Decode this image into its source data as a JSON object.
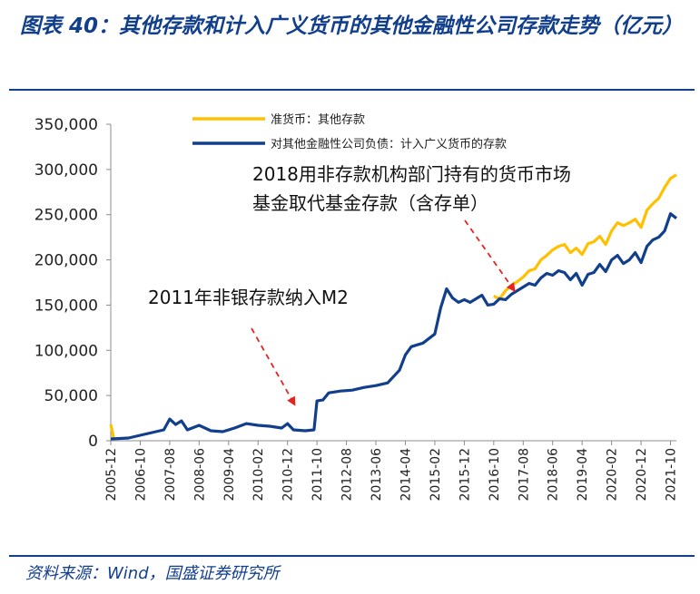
{
  "figure": {
    "title": "图表 40：其他存款和计入广义货币的其他金融性公司存款走势（亿元）",
    "source": "资料来源：Wind，国盛证券研究所"
  },
  "colors": {
    "series1": "#ffc000",
    "series2": "#123f8c",
    "annotation_arrow": "#e6231f",
    "brand": "#123f8c"
  },
  "chart_data": {
    "type": "line",
    "title": "",
    "xlabel": "",
    "ylabel": "",
    "ylim": [
      0,
      350000
    ],
    "y_ticks": [
      0,
      50000,
      100000,
      150000,
      200000,
      250000,
      300000,
      350000
    ],
    "y_tick_labels": [
      "0",
      "50,000",
      "100,000",
      "150,000",
      "200,000",
      "250,000",
      "300,000",
      "350,000"
    ],
    "x_tick_labels": [
      "2005-12",
      "2006-10",
      "2007-08",
      "2008-06",
      "2009-04",
      "2010-02",
      "2010-12",
      "2011-10",
      "2012-08",
      "2013-06",
      "2014-04",
      "2015-02",
      "2015-12",
      "2016-10",
      "2017-08",
      "2018-06",
      "2019-04",
      "2020-02",
      "2020-12",
      "2021-10"
    ],
    "x_range": [
      "2005-12",
      "2021-12"
    ],
    "legend_position": "top",
    "grid": false,
    "series": [
      {
        "name": "准货币：其他存款",
        "points": [
          [
            "2005-12",
            18000
          ],
          [
            "2006-01",
            3000
          ],
          [
            "2016-10",
            160000
          ],
          [
            "2016-12",
            157000
          ],
          [
            "2017-02",
            166000
          ],
          [
            "2017-04",
            172000
          ],
          [
            "2017-06",
            176000
          ],
          [
            "2017-08",
            181000
          ],
          [
            "2017-10",
            188000
          ],
          [
            "2017-12",
            190000
          ],
          [
            "2018-02",
            200000
          ],
          [
            "2018-04",
            205000
          ],
          [
            "2018-06",
            211000
          ],
          [
            "2018-08",
            215000
          ],
          [
            "2018-10",
            217000
          ],
          [
            "2018-12",
            208000
          ],
          [
            "2019-02",
            213000
          ],
          [
            "2019-04",
            206000
          ],
          [
            "2019-06",
            218000
          ],
          [
            "2019-08",
            220000
          ],
          [
            "2019-10",
            226000
          ],
          [
            "2019-12",
            217000
          ],
          [
            "2020-02",
            232000
          ],
          [
            "2020-04",
            241000
          ],
          [
            "2020-06",
            238000
          ],
          [
            "2020-08",
            241000
          ],
          [
            "2020-10",
            245000
          ],
          [
            "2020-12",
            236000
          ],
          [
            "2021-02",
            255000
          ],
          [
            "2021-04",
            262000
          ],
          [
            "2021-06",
            268000
          ],
          [
            "2021-08",
            280000
          ],
          [
            "2021-10",
            290000
          ],
          [
            "2021-12",
            294000
          ]
        ]
      },
      {
        "name": "对其他金融性公司负债：计入广义货币的存款",
        "points": [
          [
            "2005-12",
            2000
          ],
          [
            "2006-06",
            3000
          ],
          [
            "2006-10",
            6000
          ],
          [
            "2007-02",
            9000
          ],
          [
            "2007-06",
            12000
          ],
          [
            "2007-08",
            24000
          ],
          [
            "2007-10",
            18000
          ],
          [
            "2007-12",
            22000
          ],
          [
            "2008-02",
            12000
          ],
          [
            "2008-06",
            17000
          ],
          [
            "2008-10",
            11000
          ],
          [
            "2009-02",
            10000
          ],
          [
            "2009-06",
            14000
          ],
          [
            "2009-10",
            19000
          ],
          [
            "2010-02",
            17000
          ],
          [
            "2010-06",
            16000
          ],
          [
            "2010-10",
            14000
          ],
          [
            "2010-12",
            19000
          ],
          [
            "2011-02",
            12000
          ],
          [
            "2011-06",
            11000
          ],
          [
            "2011-09",
            12000
          ],
          [
            "2011-10",
            44000
          ],
          [
            "2011-12",
            45000
          ],
          [
            "2012-02",
            53000
          ],
          [
            "2012-06",
            55000
          ],
          [
            "2012-10",
            56000
          ],
          [
            "2013-02",
            59000
          ],
          [
            "2013-06",
            61000
          ],
          [
            "2013-10",
            64000
          ],
          [
            "2014-02",
            78000
          ],
          [
            "2014-04",
            95000
          ],
          [
            "2014-06",
            104000
          ],
          [
            "2014-10",
            108000
          ],
          [
            "2015-02",
            118000
          ],
          [
            "2015-04",
            147000
          ],
          [
            "2015-06",
            168000
          ],
          [
            "2015-08",
            158000
          ],
          [
            "2015-10",
            153000
          ],
          [
            "2015-12",
            156000
          ],
          [
            "2016-02",
            153000
          ],
          [
            "2016-06",
            161000
          ],
          [
            "2016-08",
            150000
          ],
          [
            "2016-10",
            151000
          ],
          [
            "2016-12",
            157000
          ],
          [
            "2017-02",
            156000
          ],
          [
            "2017-04",
            162000
          ],
          [
            "2017-06",
            166000
          ],
          [
            "2017-08",
            170000
          ],
          [
            "2017-10",
            174000
          ],
          [
            "2017-12",
            172000
          ],
          [
            "2018-02",
            180000
          ],
          [
            "2018-04",
            185000
          ],
          [
            "2018-06",
            183000
          ],
          [
            "2018-08",
            188000
          ],
          [
            "2018-10",
            186000
          ],
          [
            "2018-12",
            178000
          ],
          [
            "2019-02",
            185000
          ],
          [
            "2019-04",
            172000
          ],
          [
            "2019-06",
            184000
          ],
          [
            "2019-08",
            186000
          ],
          [
            "2019-10",
            195000
          ],
          [
            "2019-12",
            187000
          ],
          [
            "2020-02",
            200000
          ],
          [
            "2020-04",
            205000
          ],
          [
            "2020-06",
            196000
          ],
          [
            "2020-08",
            200000
          ],
          [
            "2020-10",
            208000
          ],
          [
            "2020-12",
            197000
          ],
          [
            "2021-02",
            215000
          ],
          [
            "2021-04",
            222000
          ],
          [
            "2021-06",
            225000
          ],
          [
            "2021-08",
            232000
          ],
          [
            "2021-10",
            251000
          ],
          [
            "2021-12",
            246000
          ]
        ]
      }
    ],
    "annotations": [
      {
        "text": "2011年非银存款纳入M2",
        "arrow_to": [
          "2011-03",
          12000
        ]
      },
      {
        "text": [
          "2018用非存款机构部门持有的货币市场",
          "基金取代基金存款（含存单）"
        ],
        "arrow_to": [
          "2017-05",
          176000
        ]
      }
    ]
  }
}
